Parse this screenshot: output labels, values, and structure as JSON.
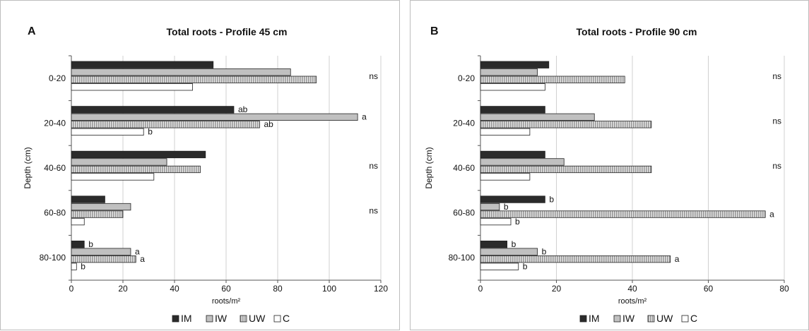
{
  "colors": {
    "IM": "#2b2b2b",
    "IW": "#c0c0c0",
    "UW": "#9a9a9a",
    "C": "#ffffff",
    "grid": "#d0d0d0",
    "axis": "#555555"
  },
  "chart_data": [
    {
      "type": "bar",
      "orientation": "horizontal",
      "panel_label": "A",
      "title": "Total roots - Profile 45 cm",
      "xlabel": "roots/m²",
      "ylabel": "Depth (cm)",
      "xlim": [
        0,
        120
      ],
      "xticks": [
        0,
        20,
        40,
        60,
        80,
        100,
        120
      ],
      "grid": true,
      "legend_position": "bottom",
      "categories": [
        "0-20",
        "20-40",
        "40-60",
        "60-80",
        "80-100"
      ],
      "series": [
        {
          "name": "IM",
          "values": [
            55,
            63,
            52,
            13,
            5
          ],
          "labels": [
            "",
            "ab",
            "",
            "",
            "b"
          ]
        },
        {
          "name": "IW",
          "values": [
            85,
            111,
            37,
            23,
            23
          ],
          "labels": [
            "",
            "a",
            "",
            "",
            "a"
          ]
        },
        {
          "name": "UW",
          "values": [
            95,
            73,
            50,
            20,
            25
          ],
          "labels": [
            "",
            "ab",
            "",
            "",
            "a"
          ]
        },
        {
          "name": "C",
          "values": [
            47,
            28,
            32,
            5,
            2
          ],
          "labels": [
            "",
            "b",
            "",
            "",
            "b"
          ]
        }
      ],
      "group_labels": [
        "ns",
        "",
        "ns",
        "ns",
        ""
      ]
    },
    {
      "type": "bar",
      "orientation": "horizontal",
      "panel_label": "B",
      "title": "Total roots - Profile 90 cm",
      "xlabel": "roots/m²",
      "ylabel": "Depth (cm)",
      "xlim": [
        0,
        80
      ],
      "xticks": [
        0,
        20,
        40,
        60,
        80
      ],
      "grid": true,
      "legend_position": "bottom",
      "categories": [
        "0-20",
        "20-40",
        "40-60",
        "60-80",
        "80-100"
      ],
      "series": [
        {
          "name": "IM",
          "values": [
            18,
            17,
            17,
            17,
            7
          ],
          "labels": [
            "",
            "",
            "",
            "b",
            "b"
          ]
        },
        {
          "name": "IW",
          "values": [
            15,
            30,
            22,
            5,
            15
          ],
          "labels": [
            "",
            "",
            "",
            "b",
            "b"
          ]
        },
        {
          "name": "UW",
          "values": [
            38,
            45,
            45,
            75,
            50
          ],
          "labels": [
            "",
            "",
            "",
            "a",
            "a"
          ]
        },
        {
          "name": "C",
          "values": [
            17,
            13,
            13,
            8,
            10
          ],
          "labels": [
            "",
            "",
            "",
            "b",
            "b"
          ]
        }
      ],
      "group_labels": [
        "ns",
        "ns",
        "ns",
        "",
        ""
      ]
    }
  ]
}
